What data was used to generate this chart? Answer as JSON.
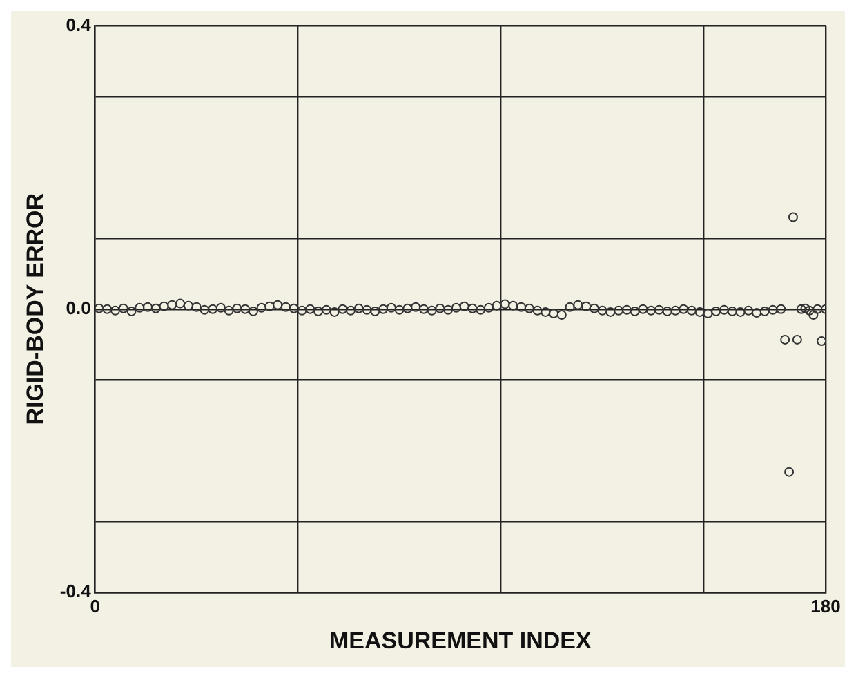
{
  "chart_data": {
    "type": "scatter",
    "xlabel": "MEASUREMENT INDEX",
    "ylabel": "RIGID-BODY ERROR",
    "x": [
      1,
      3,
      5,
      7,
      9,
      11,
      13,
      15,
      17,
      19,
      21,
      23,
      25,
      27,
      29,
      31,
      33,
      35,
      37,
      39,
      41,
      43,
      45,
      47,
      49,
      51,
      53,
      55,
      57,
      59,
      61,
      63,
      65,
      67,
      69,
      71,
      73,
      75,
      77,
      79,
      81,
      83,
      85,
      87,
      89,
      91,
      93,
      95,
      97,
      99,
      101,
      103,
      105,
      107,
      109,
      111,
      113,
      115,
      117,
      119,
      121,
      123,
      125,
      127,
      129,
      131,
      133,
      135,
      137,
      139,
      141,
      143,
      145,
      147,
      149,
      151,
      153,
      155,
      157,
      159,
      161,
      163,
      165,
      167,
      169,
      170,
      171,
      172,
      173,
      174,
      175,
      176,
      177,
      178,
      179,
      180
    ],
    "series": [
      {
        "color": "#333333",
        "values": [
          0.001,
          0.0,
          -0.002,
          0.001,
          -0.003,
          0.002,
          0.003,
          0.001,
          0.004,
          0.006,
          0.008,
          0.005,
          0.003,
          -0.001,
          0.0,
          0.002,
          -0.002,
          0.001,
          0.0,
          -0.003,
          0.002,
          0.004,
          0.006,
          0.003,
          0.001,
          -0.002,
          0.0,
          -0.003,
          -0.001,
          -0.004,
          0.0,
          -0.002,
          0.001,
          -0.001,
          -0.003,
          0.0,
          0.002,
          -0.001,
          0.001,
          0.003,
          0.0,
          -0.002,
          0.001,
          -0.001,
          0.002,
          0.004,
          0.001,
          -0.001,
          0.002,
          0.005,
          0.007,
          0.005,
          0.003,
          0.001,
          -0.002,
          -0.004,
          -0.006,
          -0.008,
          0.003,
          0.006,
          0.004,
          0.001,
          -0.002,
          -0.004,
          -0.002,
          -0.001,
          -0.003,
          0.0,
          -0.002,
          -0.001,
          -0.003,
          -0.002,
          0.0,
          -0.002,
          -0.004,
          -0.006,
          -0.003,
          -0.001,
          -0.003,
          -0.004,
          -0.002,
          -0.005,
          -0.003,
          -0.001,
          0.0,
          -0.043,
          -0.23,
          0.13,
          -0.043,
          0.0,
          0.001,
          -0.002,
          -0.008,
          0.0,
          -0.045,
          0.0
        ]
      }
    ],
    "xlim": [
      0,
      180
    ],
    "xticks": [
      0,
      {
        "value": 50,
        "label": null
      },
      {
        "value": 100,
        "label": null
      },
      {
        "value": 150,
        "label": null
      },
      180
    ],
    "ylim": [
      -0.4,
      0.4
    ],
    "yticks": [
      -0.4,
      {
        "value": -0.3,
        "label": null
      },
      {
        "value": -0.1,
        "label": null
      },
      {
        "value": 0,
        "label": "0.0"
      },
      {
        "value": 0.1,
        "label": null
      },
      {
        "value": 0.3,
        "label": null
      },
      0.4
    ],
    "grid": true,
    "marker": "circle"
  }
}
